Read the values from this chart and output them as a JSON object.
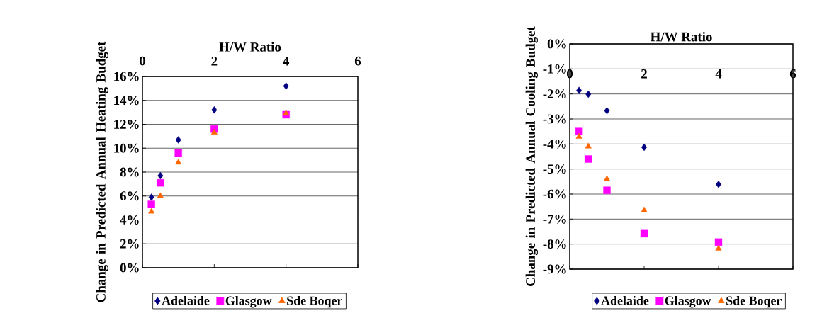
{
  "chart_data": [
    {
      "type": "scatter",
      "xlabel": "H/W Ratio",
      "ylabel": "Change in Predicted Annual Heating Budget",
      "x": [
        0.25,
        0.5,
        1,
        2,
        4
      ],
      "series": [
        {
          "name": "Adelaide",
          "color": "#000080",
          "marker": "diamond",
          "values": [
            5.9,
            7.7,
            10.7,
            13.2,
            15.2
          ]
        },
        {
          "name": "Glasgow",
          "color": "#ff00ff",
          "marker": "square",
          "values": [
            5.3,
            7.1,
            9.6,
            11.6,
            12.8
          ]
        },
        {
          "name": "Sde Boqer",
          "color": "#ff6600",
          "marker": "triangle",
          "values": [
            4.7,
            6.0,
            8.8,
            11.3,
            12.9
          ]
        }
      ],
      "xlim": [
        0,
        6
      ],
      "xticks": [
        0,
        2,
        4,
        6
      ],
      "ylim": [
        0,
        16
      ],
      "yticks": [
        {
          "value": 0,
          "label": "0%"
        },
        {
          "value": 2,
          "label": "2%"
        },
        {
          "value": 4,
          "label": "4%"
        },
        {
          "value": 6,
          "label": "6%"
        },
        {
          "value": 8,
          "label": "8%"
        },
        {
          "value": 10,
          "label": "10%"
        },
        {
          "value": 12,
          "label": "12%"
        },
        {
          "value": 14,
          "label": "14%"
        },
        {
          "value": 16,
          "label": "16%"
        }
      ],
      "grid": "y",
      "legend": "bottom"
    },
    {
      "type": "scatter",
      "xlabel": "H/W Ratio",
      "ylabel": "Change in Predicted Annual Cooling Budget",
      "x": [
        0.25,
        0.5,
        1,
        2,
        4
      ],
      "series": [
        {
          "name": "Adelaide",
          "color": "#000080",
          "marker": "diamond",
          "values": [
            -1.86,
            -2.01,
            -2.67,
            -4.13,
            -5.61
          ]
        },
        {
          "name": "Glasgow",
          "color": "#ff00ff",
          "marker": "square",
          "values": [
            -3.5,
            -4.6,
            -5.85,
            -7.58,
            -7.92
          ]
        },
        {
          "name": "Sde Boqer",
          "color": "#ff6600",
          "marker": "triangle",
          "values": [
            -3.71,
            -4.1,
            -5.4,
            -6.65,
            -8.18
          ]
        }
      ],
      "xlim": [
        0,
        6
      ],
      "xticks": [
        0,
        2,
        4,
        6
      ],
      "ylim": [
        -9,
        0
      ],
      "yticks": [
        {
          "value": -9,
          "label": "-9%"
        },
        {
          "value": -8,
          "label": "-8%"
        },
        {
          "value": -7,
          "label": "-7%"
        },
        {
          "value": -6,
          "label": "-6%"
        },
        {
          "value": -5,
          "label": "-5%"
        },
        {
          "value": -4,
          "label": "-4%"
        },
        {
          "value": -3,
          "label": "-3%"
        },
        {
          "value": -2,
          "label": "-2%"
        },
        {
          "value": -1,
          "label": "-1%"
        },
        {
          "value": 0,
          "label": "0%"
        }
      ],
      "grid": "y",
      "legend": "bottom"
    }
  ]
}
